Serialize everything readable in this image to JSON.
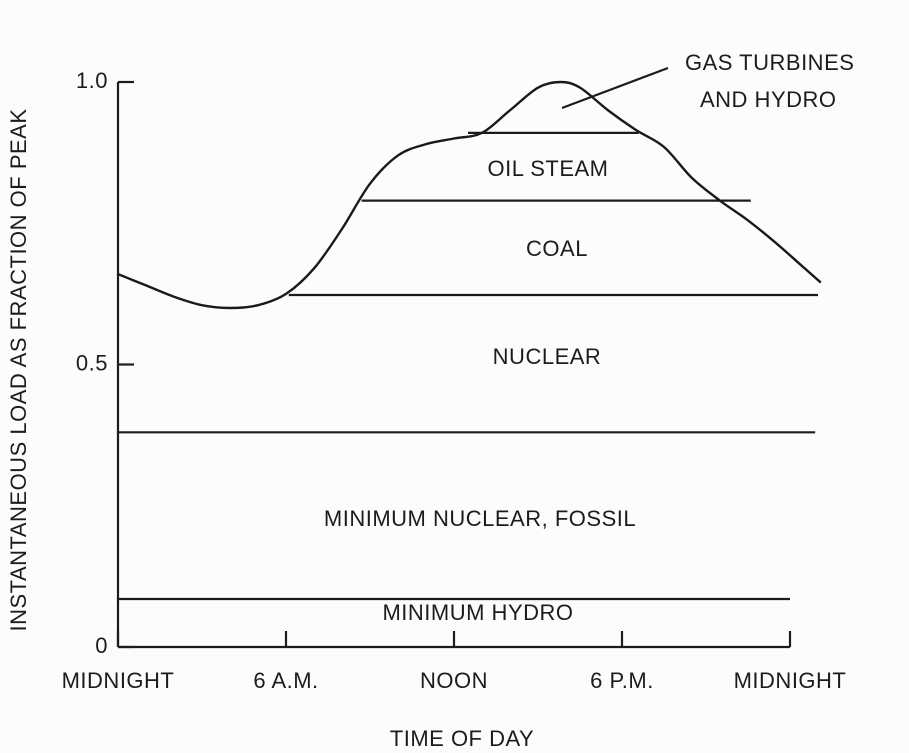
{
  "chart_data": {
    "type": "line",
    "xlabel": "TIME OF DAY",
    "ylabel": "INSTANTANEOUS LOAD AS FRACTION OF PEAK",
    "x": [
      0,
      1,
      2,
      3,
      4,
      5,
      6,
      7,
      8,
      9,
      10,
      11,
      12,
      13,
      14,
      15,
      15.8,
      16.5,
      17.5,
      18.5,
      19.5,
      20.5,
      21.5,
      22.5,
      23.5,
      24.3,
      25.1
    ],
    "series": [
      {
        "color": "#1a1a1a",
        "values": [
          0.66,
          0.64,
          0.62,
          0.605,
          0.6,
          0.605,
          0.625,
          0.67,
          0.74,
          0.82,
          0.87,
          0.89,
          0.9,
          0.91,
          0.95,
          0.99,
          1.0,
          0.99,
          0.95,
          0.915,
          0.885,
          0.83,
          0.79,
          0.755,
          0.715,
          0.68,
          0.645
        ]
      }
    ],
    "levels": [
      {
        "value": 0.085,
        "x": [
          0,
          24
        ]
      },
      {
        "value": 0.38,
        "x": [
          0,
          24.9
        ]
      },
      {
        "value": 0.623,
        "x": [
          6.1,
          25
        ]
      },
      {
        "value": 0.79,
        "x": [
          8.7,
          22.6
        ]
      },
      {
        "value": 0.91,
        "x": [
          12.5,
          18.6
        ]
      }
    ],
    "regions": [
      "MINIMUM HYDRO",
      "MINIMUM NUCLEAR, FOSSIL",
      "NUCLEAR",
      "COAL",
      "OIL STEAM"
    ],
    "annotation": [
      "GAS TURBINES",
      "AND HYDRO"
    ],
    "xlim": [
      0,
      26
    ],
    "xticks": [
      {
        "value": 0,
        "label": "MIDNIGHT"
      },
      {
        "value": 6,
        "label": "6 A.M."
      },
      {
        "value": 12,
        "label": "NOON"
      },
      {
        "value": 18,
        "label": "6 P.M."
      },
      {
        "value": 24,
        "label": "MIDNIGHT"
      }
    ],
    "ylim": [
      0,
      1
    ],
    "yticks": [
      0,
      0.5,
      {
        "value": 1,
        "label": "1.0"
      }
    ]
  }
}
